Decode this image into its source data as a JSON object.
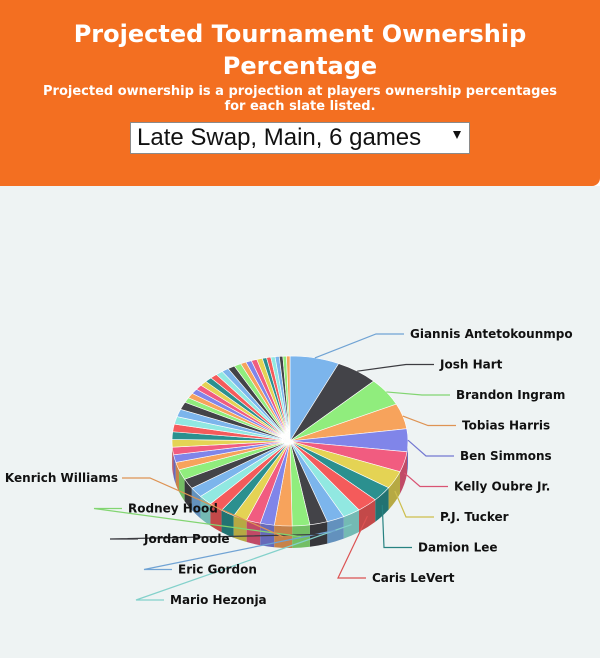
{
  "header": {
    "title": "Projected Tournament Ownership Percentage",
    "subtitle": "Projected ownership is a projection at players ownership percentages for each slate listed.",
    "slate_select": {
      "value": "Late Swap, Main, 6 games"
    }
  },
  "chart_data": {
    "type": "pie",
    "style": "3d",
    "labeled_slices": [
      {
        "label": "Giannis Antetokounmpo",
        "value": 7.0,
        "color": "#7cb5ec"
      },
      {
        "label": "Josh Hart",
        "value": 6.0,
        "color": "#434348"
      },
      {
        "label": "Brandon Ingram",
        "value": 5.5,
        "color": "#90ed7d"
      },
      {
        "label": "Tobias Harris",
        "value": 5.0,
        "color": "#f7a35c"
      },
      {
        "label": "Ben Simmons",
        "value": 4.5,
        "color": "#8085e9"
      },
      {
        "label": "Kelly Oubre Jr.",
        "value": 4.0,
        "color": "#f15c80"
      },
      {
        "label": "P.J. Tucker",
        "value": 3.5,
        "color": "#e4d354"
      },
      {
        "label": "Damion Lee",
        "value": 3.0,
        "color": "#2b908f"
      },
      {
        "label": "Caris LeVert",
        "value": 3.0,
        "color": "#f45b5b"
      },
      {
        "label": "Mario Hezonja",
        "value": 2.5,
        "color": "#91e8e1"
      },
      {
        "label": "Eric Gordon",
        "value": 2.5,
        "color": "#7cb5ec"
      },
      {
        "label": "Jordan Poole",
        "value": 2.5,
        "color": "#434348"
      },
      {
        "label": "Rodney Hood",
        "value": 2.5,
        "color": "#90ed7d"
      },
      {
        "label": "Kenrich Williams",
        "value": 2.5,
        "color": "#f7a35c"
      }
    ],
    "unlabeled_slice_values": [
      2,
      2,
      2,
      2,
      2,
      2,
      2,
      2,
      2,
      1.5,
      1.5,
      1.5,
      1.5,
      1.5,
      1.5,
      1.5,
      1.5,
      1.5,
      1,
      1,
      1,
      1,
      1,
      1,
      1,
      1,
      1,
      1,
      1,
      0.8,
      0.8,
      0.8,
      0.8,
      0.6,
      0.6,
      0.6,
      0.6,
      0.5,
      0.5,
      0.5
    ],
    "palette": [
      "#7cb5ec",
      "#434348",
      "#90ed7d",
      "#f7a35c",
      "#8085e9",
      "#f15c80",
      "#e4d354",
      "#2b908f",
      "#f45b5b",
      "#91e8e1"
    ]
  }
}
